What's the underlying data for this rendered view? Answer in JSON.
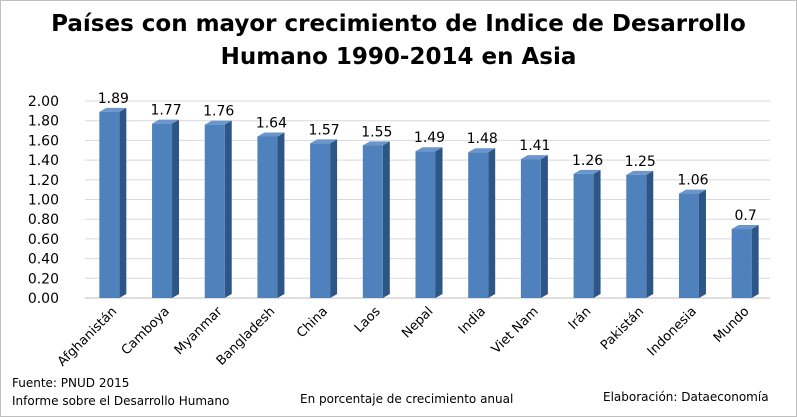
{
  "title_line1": "Países con mayor crecimiento de Indice de Desarrollo",
  "title_line2": "Humano 1990-2014 en Asia",
  "footer": {
    "source1": "Fuente: PNUD 2015",
    "source2": "Informe sobre el Desarrollo Humano",
    "xlabel": "En porcentaje de crecimiento anual",
    "credit": "Elaboración: Dataeconomía"
  },
  "colors": {
    "bar_front": "#4f81bd",
    "bar_side": "#2d5686",
    "bar_top": "#6a96cc",
    "grid": "#d9d9d9"
  },
  "chart_data": {
    "type": "bar",
    "categories": [
      "Afghanistán",
      "Camboya",
      "Myanmar",
      "Bangladesh",
      "China",
      "Laos",
      "Nepal",
      "India",
      "Viet Nam",
      "Irán",
      "Pakistán",
      "Indonesia",
      "Mundo"
    ],
    "values": [
      1.89,
      1.77,
      1.76,
      1.64,
      1.57,
      1.55,
      1.49,
      1.48,
      1.41,
      1.26,
      1.25,
      1.06,
      0.7
    ],
    "value_labels": [
      "1.89",
      "1.77",
      "1.76",
      "1.64",
      "1.57",
      "1.55",
      "1.49",
      "1.48",
      "1.41",
      "1.26",
      "1.25",
      "1.06",
      "0.7"
    ],
    "yticks": [
      "0.00",
      "0.20",
      "0.40",
      "0.60",
      "0.80",
      "1.00",
      "1.20",
      "1.40",
      "1.60",
      "1.80",
      "2.00"
    ],
    "ylim": [
      0,
      2.0
    ],
    "grid": true
  }
}
